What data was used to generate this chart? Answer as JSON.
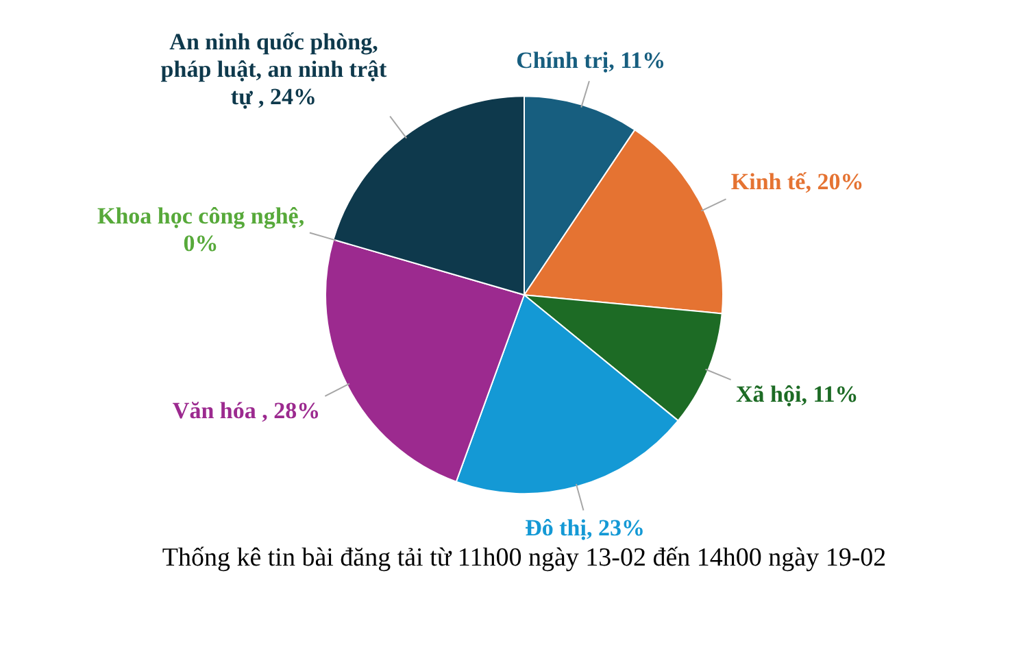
{
  "chart_data": {
    "type": "pie",
    "title": "Thống kê tin bài đăng tải từ 11h00 ngày 13-02 đến 14h00 ngày 19-02",
    "categories": [
      "Chính trị",
      "Kinh tế",
      "Xã hội",
      "Đô thị",
      "Văn hóa ",
      "Khoa học công nghệ",
      "An ninh quốc phòng, pháp luật, an ninh trật tự "
    ],
    "values": [
      11,
      20,
      11,
      23,
      28,
      0,
      24
    ],
    "value_labels": [
      "11%",
      "20%",
      "11%",
      "23%",
      "28%",
      "0%",
      "24%"
    ],
    "colors": [
      "#175e7f",
      "#e57332",
      "#1d6b25",
      "#1499d5",
      "#9c2a8f",
      "#57a93a",
      "#0e394c"
    ]
  }
}
